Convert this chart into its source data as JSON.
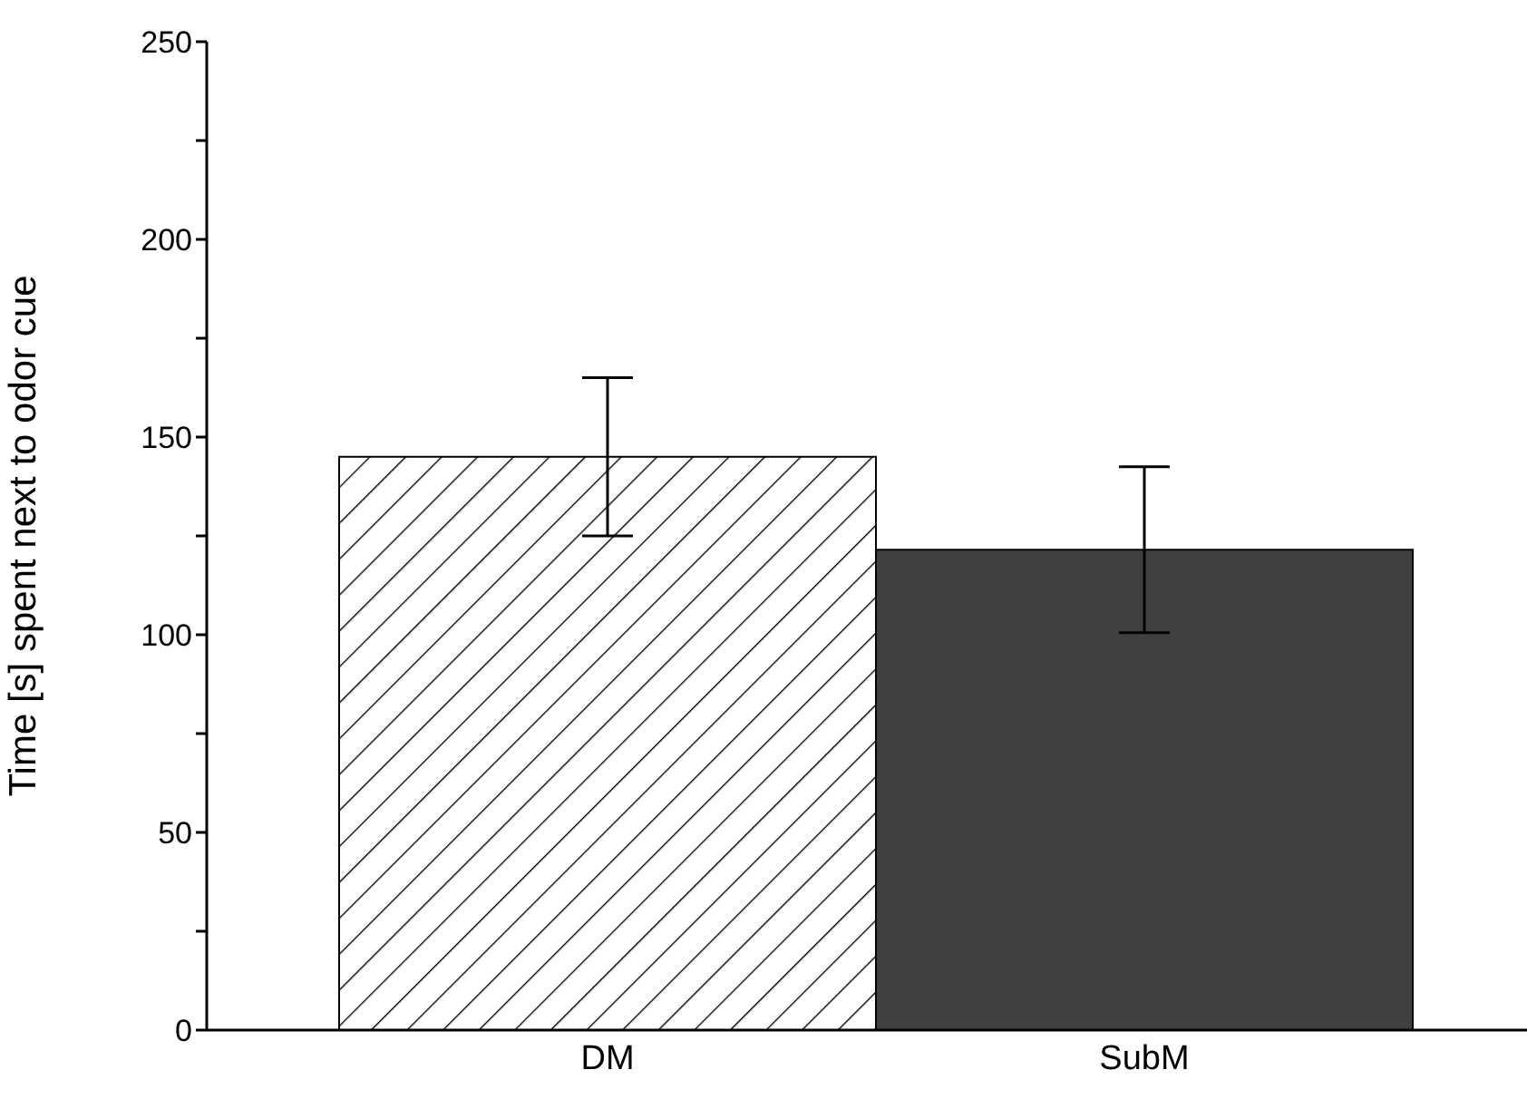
{
  "chart_data": {
    "type": "bar",
    "ylabel": "Time [s] spent next to odor cue",
    "categories": [
      "DM",
      "SubM"
    ],
    "values": [
      145,
      121.5
    ],
    "errors": [
      20,
      21
    ],
    "colors": [
      "#000000",
      "#404040"
    ],
    "ylim": [
      0,
      250
    ],
    "yticks": [
      0,
      {
        "value": 25,
        "label": null
      },
      50,
      {
        "value": 75,
        "label": null
      },
      100,
      {
        "value": 125,
        "label": null
      },
      150,
      {
        "value": 175,
        "label": null
      },
      200,
      {
        "value": 225,
        "label": null
      },
      250
    ],
    "grid": false,
    "legend": false
  }
}
